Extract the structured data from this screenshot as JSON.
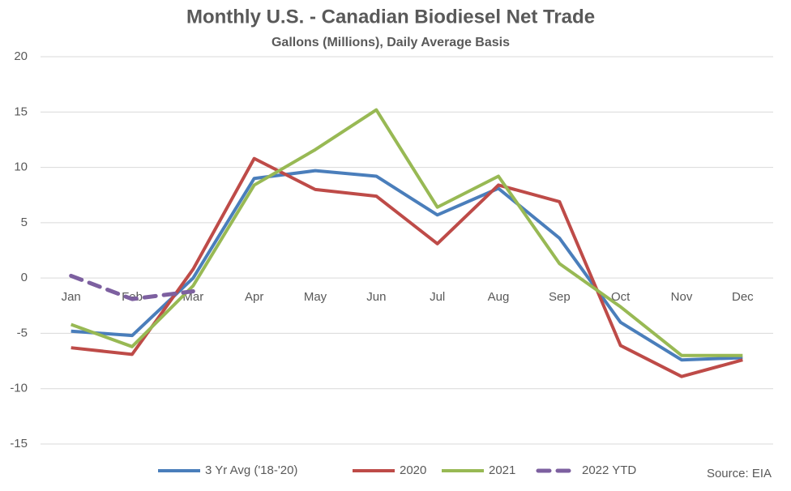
{
  "chart_data": {
    "type": "line",
    "title": "Monthly U.S. - Canadian Biodiesel Net Trade",
    "subtitle": "Gallons (Millions), Daily Average Basis",
    "source": "Source: EIA",
    "categories": [
      "Jan",
      "Feb",
      "Mar",
      "Apr",
      "May",
      "Jun",
      "Jul",
      "Aug",
      "Sep",
      "Oct",
      "Nov",
      "Dec"
    ],
    "series": [
      {
        "name": "3 Yr Avg ('18-'20)",
        "color": "#4a7ebb",
        "dashed": false,
        "values": [
          -4.8,
          -5.2,
          0,
          9.0,
          9.7,
          9.2,
          5.7,
          8.1,
          3.6,
          -4.0,
          -7.4,
          -7.2
        ]
      },
      {
        "name": "2020",
        "color": "#be4b48",
        "dashed": false,
        "values": [
          -6.3,
          -6.9,
          0.8,
          10.8,
          8.0,
          7.4,
          3.1,
          8.4,
          6.9,
          -6.1,
          -8.9,
          -7.4
        ]
      },
      {
        "name": "2021",
        "color": "#98b954",
        "dashed": false,
        "values": [
          -4.2,
          -6.2,
          -0.7,
          8.4,
          11.6,
          15.2,
          6.4,
          9.2,
          1.3,
          -2.6,
          -7.0,
          -7.0
        ]
      },
      {
        "name": "2022 YTD",
        "color": "#7d60a0",
        "dashed": true,
        "values": [
          0.2,
          -1.9,
          -1.2,
          null,
          null,
          null,
          null,
          null,
          null,
          null,
          null,
          null
        ]
      }
    ],
    "ylim": [
      -15,
      20
    ],
    "yticks": [
      -15,
      -10,
      -5,
      0,
      5,
      10,
      15,
      20
    ],
    "grid": true,
    "legend": "bottom"
  }
}
